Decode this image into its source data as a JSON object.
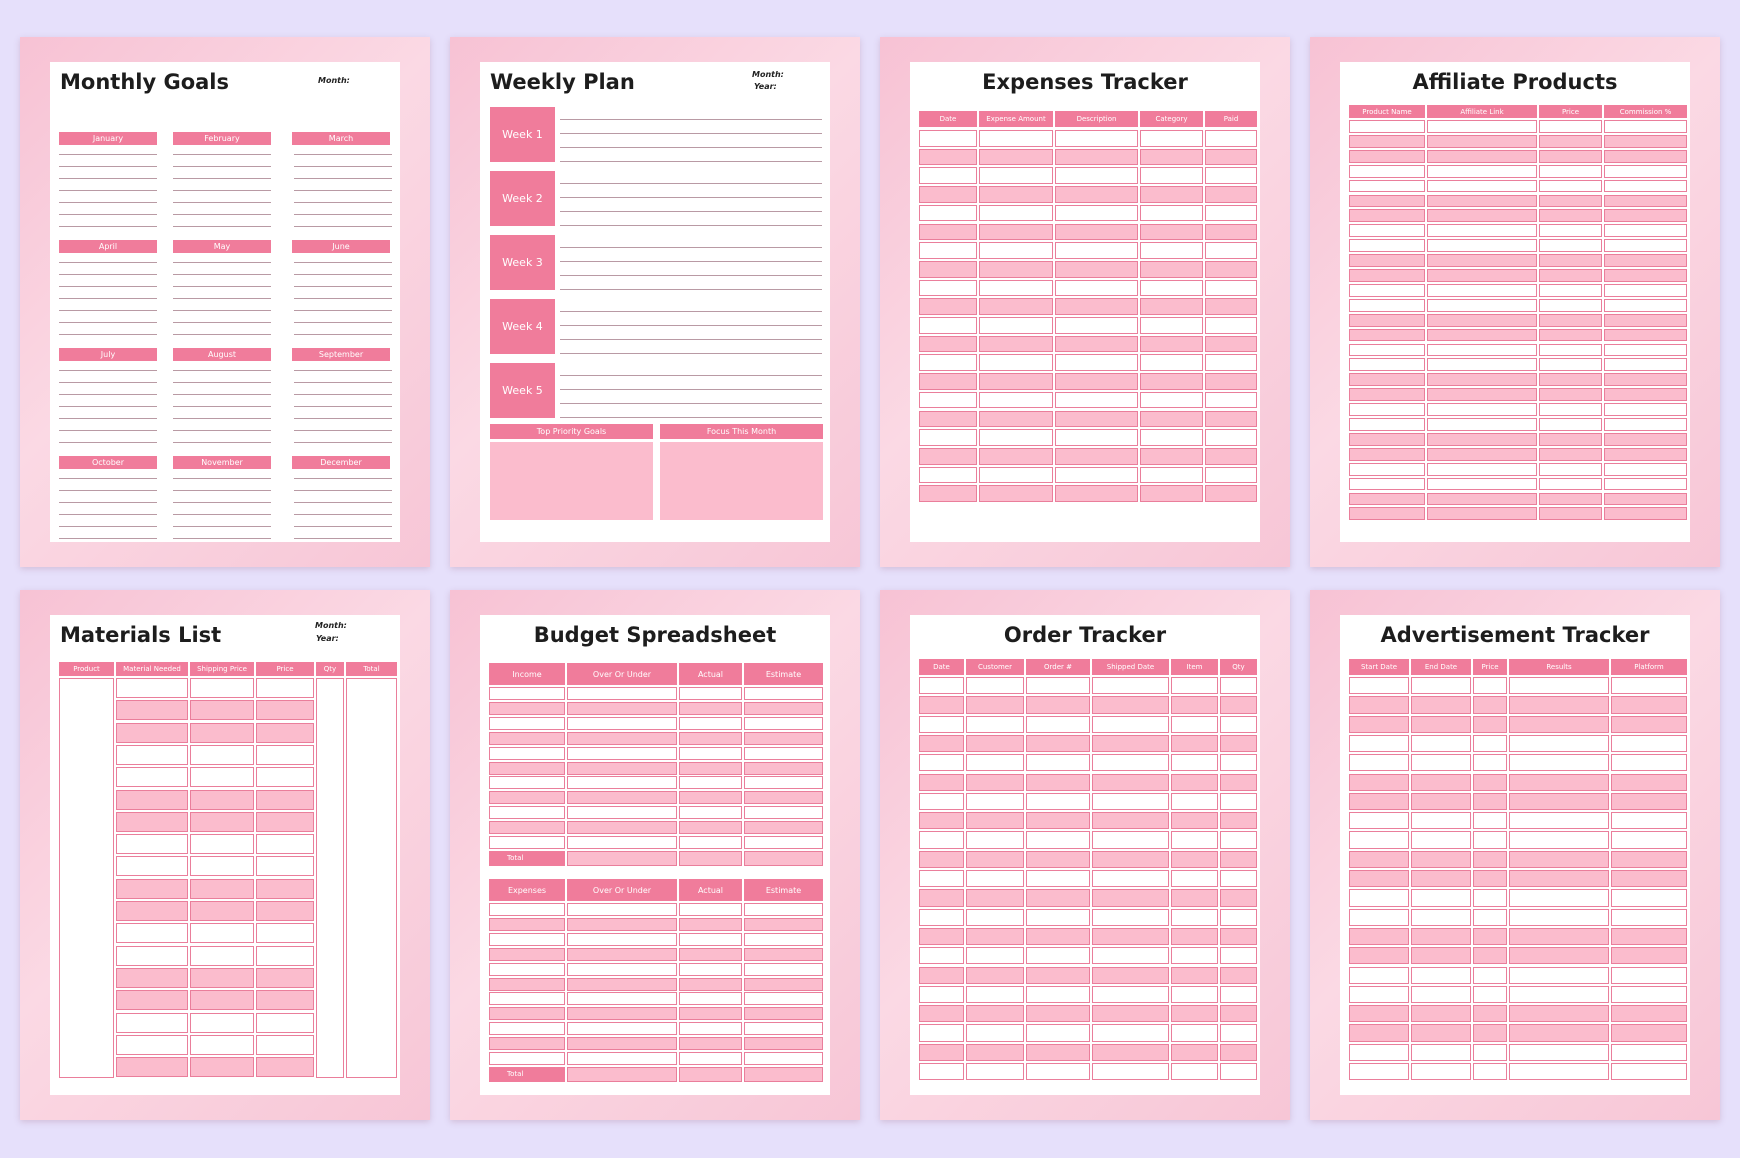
{
  "colors": {
    "background": "#e6e0fb",
    "accent": "#f07c9b",
    "row_pink": "#fbbccd",
    "frame_pink": "#f7c2d4"
  },
  "monthly_goals": {
    "title": "Monthly Goals",
    "month_label": "Month:",
    "months": [
      "January",
      "February",
      "March",
      "April",
      "May",
      "June",
      "July",
      "August",
      "September",
      "October",
      "November",
      "December"
    ]
  },
  "weekly_plan": {
    "title": "Weekly Plan",
    "month_label": "Month:",
    "year_label": "Year:",
    "weeks": [
      "Week 1",
      "Week 2",
      "Week 3",
      "Week 4",
      "Week 5"
    ],
    "top_priority": "Top Priority Goals",
    "focus": "Focus This Month"
  },
  "expenses_tracker": {
    "title": "Expenses Tracker",
    "columns": [
      "Date",
      "Expense Amount",
      "Description",
      "Category",
      "Paid"
    ]
  },
  "affiliate_products": {
    "title": "Affiliate Products",
    "columns": [
      "Product Name",
      "Affiliate Link",
      "Price",
      "Commission %"
    ]
  },
  "materials_list": {
    "title": "Materials List",
    "month_label": "Month:",
    "year_label": "Year:",
    "columns": [
      "Product",
      "Material Needed",
      "Shipping Price",
      "Price",
      "Qty",
      "Total"
    ]
  },
  "budget_spreadsheet": {
    "title": "Budget Spreadsheet",
    "income_columns": [
      "Income",
      "Over Or Under",
      "Actual",
      "Estimate"
    ],
    "expense_columns": [
      "Expenses",
      "Over Or Under",
      "Actual",
      "Estimate"
    ],
    "total_label": "Total"
  },
  "order_tracker": {
    "title": "Order Tracker",
    "columns": [
      "Date",
      "Customer",
      "Order #",
      "Shipped Date",
      "Item",
      "Qty"
    ]
  },
  "advertisement_tracker": {
    "title": "Advertisement Tracker",
    "columns": [
      "Start Date",
      "End Date",
      "Price",
      "Results",
      "Platform"
    ]
  }
}
